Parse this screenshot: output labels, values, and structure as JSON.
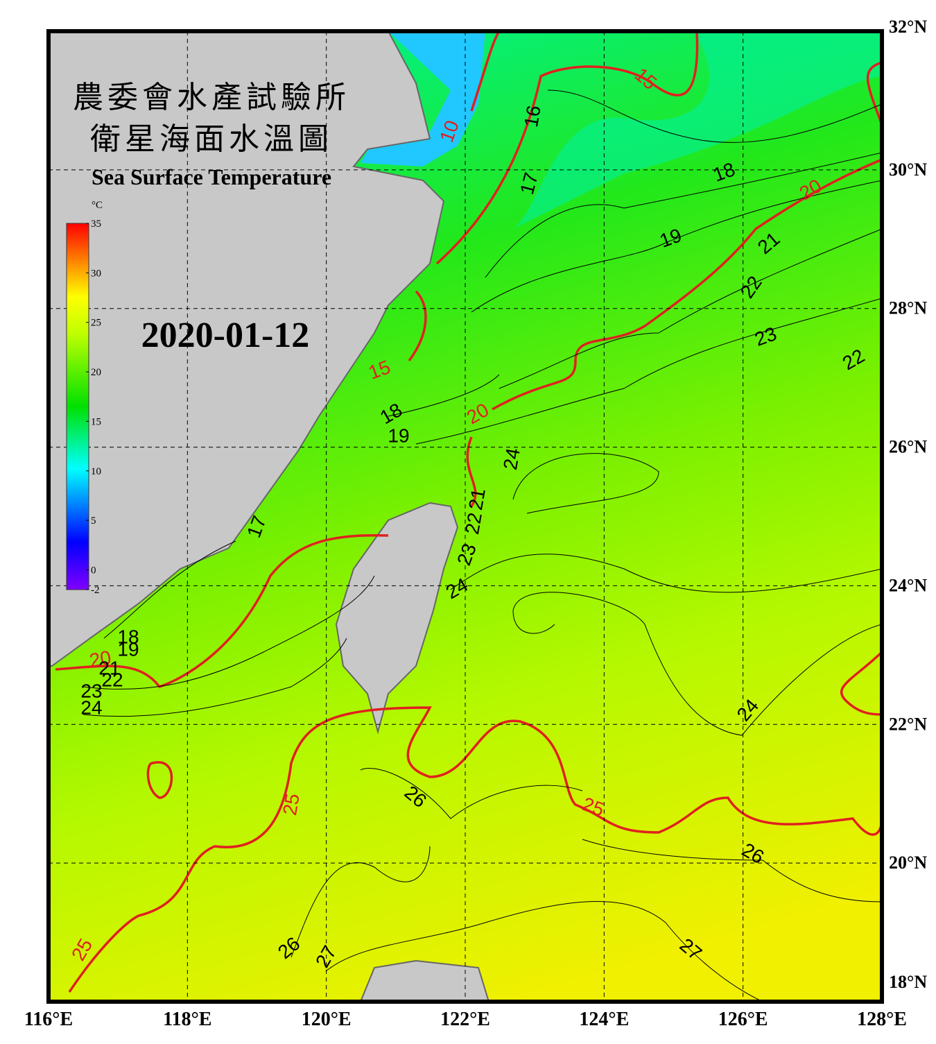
{
  "map": {
    "title_line1": "農委會水產試驗所",
    "title_line2": "衛星海面水溫圖",
    "subtitle": "Sea Surface Temperature",
    "date": "2020-01-12",
    "colorbar": {
      "unit": "°C",
      "lim": [
        -2,
        35
      ],
      "ticks": [
        35,
        30,
        25,
        20,
        15,
        10,
        5,
        0,
        -2
      ]
    },
    "xlim": [
      116,
      128
    ],
    "xticks": [
      {
        "value": 116,
        "label": "116°E"
      },
      {
        "value": 118,
        "label": "118°E"
      },
      {
        "value": 120,
        "label": "120°E"
      },
      {
        "value": 122,
        "label": "122°E"
      },
      {
        "value": 124,
        "label": "124°E"
      },
      {
        "value": 126,
        "label": "126°E"
      },
      {
        "value": 128,
        "label": "128°E"
      }
    ],
    "ylim": [
      18,
      32
    ],
    "yticks": [
      {
        "value": 18,
        "label": "18°N"
      },
      {
        "value": 20,
        "label": "20°N"
      },
      {
        "value": 22,
        "label": "22°N"
      },
      {
        "value": 24,
        "label": "24°N"
      },
      {
        "value": 26,
        "label": "26°N"
      },
      {
        "value": 28,
        "label": "28°N"
      },
      {
        "value": 30,
        "label": "30°N"
      },
      {
        "value": 32,
        "label": "32°N"
      }
    ],
    "major_contour_labels": [
      15,
      10,
      20,
      15,
      20,
      20,
      25,
      25,
      25
    ],
    "minor_contour_labels": [
      16,
      17,
      18,
      19,
      21,
      22,
      23,
      22,
      18,
      19,
      24,
      21,
      22,
      23,
      24,
      17,
      18,
      19,
      21,
      22,
      23,
      24,
      24,
      26,
      26,
      26,
      27,
      27
    ]
  }
}
